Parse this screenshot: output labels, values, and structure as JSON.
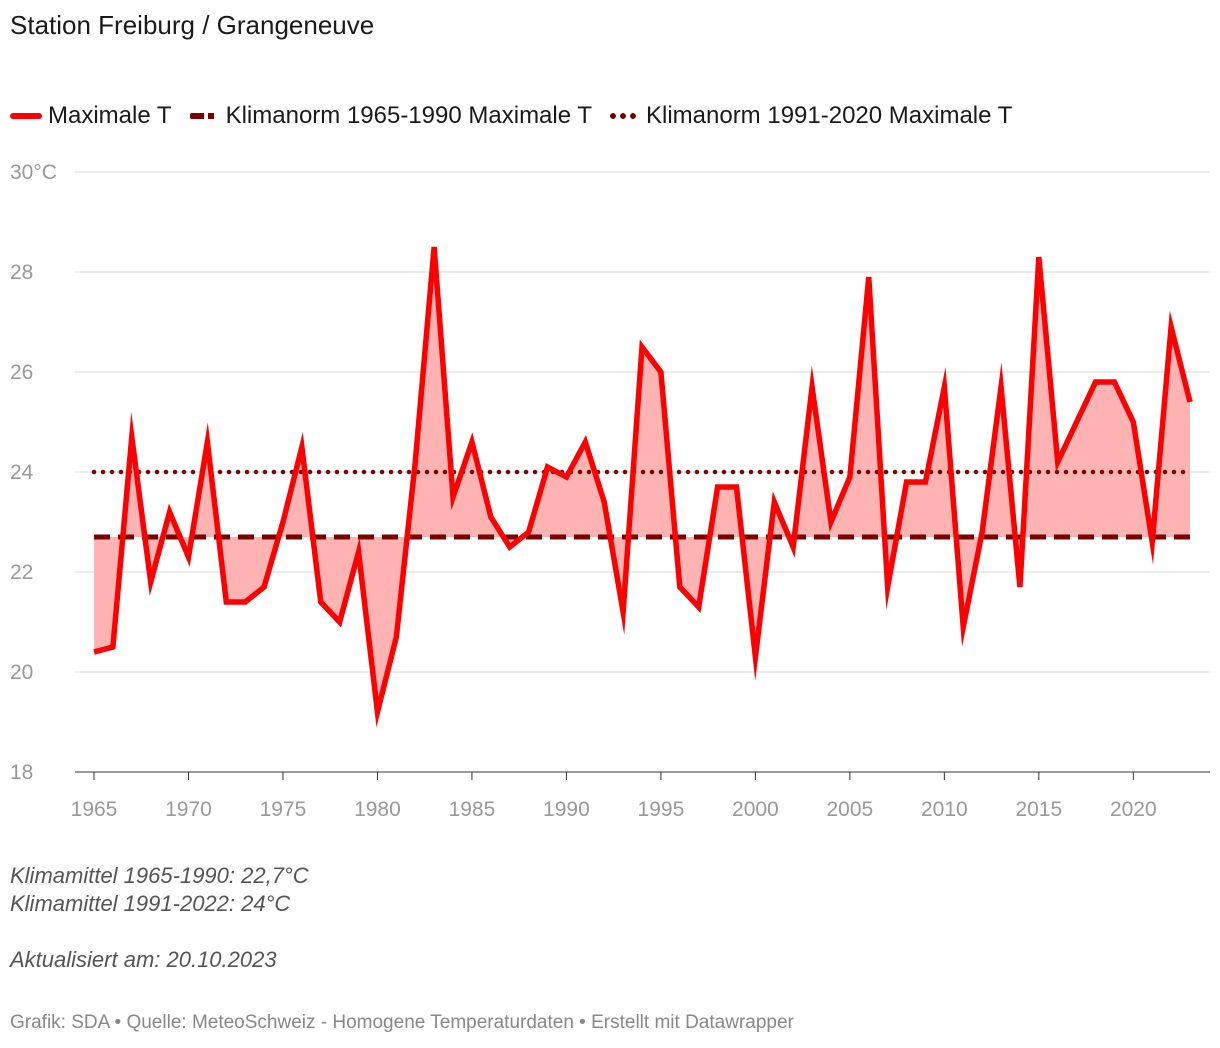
{
  "title": "Station Freiburg / Grangeneuve",
  "legend": {
    "series": "Maximale T",
    "norm1": "Klimanorm 1965-1990 Maximale T",
    "norm2": "Klimanorm 1991-2020 Maximale T"
  },
  "notes": {
    "line1": "Klimamittel 1965-1990: 22,7°C",
    "line2": "Klimamittel 1991-2022: 24°C",
    "updated": "Aktualisiert am: 20.10.2023"
  },
  "footer": "Grafik: SDA • Quelle: MeteoSchweiz - Homogene Temperaturdaten • Erstellt mit Datawrapper",
  "colors": {
    "line": "#ff0000",
    "fill": "#ffb3b3",
    "norm": "#7a0000",
    "grid": "#e0e0e0",
    "axis_text": "#999999"
  },
  "chart_data": {
    "type": "line",
    "title": "Station Freiburg / Grangeneuve",
    "xlabel": "",
    "ylabel": "",
    "xlim": [
      1965,
      2023
    ],
    "ylim": [
      18,
      30
    ],
    "y_ticks": [
      18,
      20,
      22,
      24,
      26,
      28,
      30
    ],
    "y_tick_labels": [
      "18",
      "20",
      "22",
      "24",
      "26",
      "28",
      "30°C"
    ],
    "x_ticks": [
      1965,
      1970,
      1975,
      1980,
      1985,
      1990,
      1995,
      2000,
      2005,
      2010,
      2015,
      2020
    ],
    "x_tick_labels": [
      "1965",
      "1970",
      "1975",
      "1980",
      "1985",
      "1990",
      "1995",
      "2000",
      "2005",
      "2010",
      "2015",
      "2020"
    ],
    "series": [
      {
        "name": "Maximale T",
        "x": [
          1965,
          1966,
          1967,
          1968,
          1969,
          1970,
          1971,
          1972,
          1973,
          1974,
          1975,
          1976,
          1977,
          1978,
          1979,
          1980,
          1981,
          1982,
          1983,
          1984,
          1985,
          1986,
          1987,
          1988,
          1989,
          1990,
          1991,
          1992,
          1993,
          1994,
          1995,
          1996,
          1997,
          1998,
          1999,
          2000,
          2001,
          2002,
          2003,
          2004,
          2005,
          2006,
          2007,
          2008,
          2009,
          2010,
          2011,
          2012,
          2013,
          2014,
          2015,
          2016,
          2017,
          2018,
          2019,
          2020,
          2021,
          2022,
          2023
        ],
        "values": [
          20.4,
          20.5,
          24.7,
          21.8,
          23.2,
          22.3,
          24.6,
          21.4,
          21.4,
          21.7,
          23.0,
          24.5,
          21.4,
          21.0,
          22.4,
          19.2,
          20.7,
          24.2,
          28.5,
          23.5,
          24.6,
          23.1,
          22.5,
          22.8,
          24.1,
          23.9,
          24.6,
          23.4,
          21.2,
          26.5,
          26.0,
          21.7,
          21.3,
          23.7,
          23.7,
          20.3,
          23.4,
          22.5,
          25.7,
          23.0,
          23.9,
          27.9,
          21.7,
          23.8,
          23.8,
          25.7,
          20.9,
          22.8,
          25.7,
          21.7,
          28.3,
          24.2,
          25.0,
          25.8,
          25.8,
          25.0,
          22.6,
          26.9,
          25.4
        ]
      },
      {
        "name": "Klimanorm 1965-1990 Maximale T",
        "value": 22.7,
        "style": "dashed"
      },
      {
        "name": "Klimanorm 1991-2020 Maximale T",
        "value": 24.0,
        "style": "dotted"
      }
    ]
  }
}
